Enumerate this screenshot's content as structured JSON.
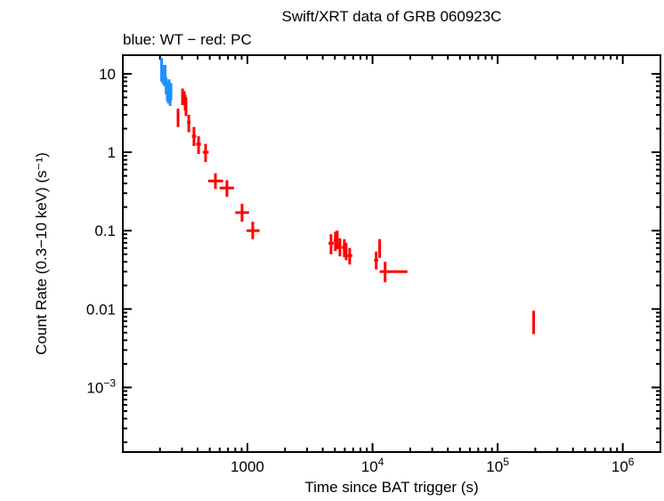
{
  "chart_data": {
    "type": "scatter",
    "title": "Swift/XRT data of GRB 060923C",
    "subtitle": "blue: WT − red: PC",
    "xlabel": "Time since BAT trigger (s)",
    "ylabel": "Count Rate (0.3−10 keV) (s⁻¹)",
    "xscale": "log",
    "yscale": "log",
    "xlim": [
      101,
      2000000
    ],
    "ylim": [
      0.00015,
      17.3
    ],
    "grid": false,
    "x_ticks": [
      {
        "value": 1000,
        "label": "1000"
      },
      {
        "value": 10000,
        "base": "10",
        "exp": "4"
      },
      {
        "value": 100000,
        "base": "10",
        "exp": "5"
      },
      {
        "value": 1000000,
        "base": "10",
        "exp": "6"
      }
    ],
    "y_ticks": [
      {
        "value": 10,
        "label": "10"
      },
      {
        "value": 1,
        "label": "1"
      },
      {
        "value": 0.1,
        "label": "0.1"
      },
      {
        "value": 0.01,
        "label": "0.01"
      },
      {
        "value": 0.001,
        "base": "10",
        "exp": "−3"
      }
    ],
    "series": [
      {
        "name": "WT",
        "color": "#1e90ff",
        "points": [
          {
            "x": 206,
            "y": 12,
            "ylo": 8,
            "yhi": 16,
            "xlo": 204,
            "xhi": 209
          },
          {
            "x": 211,
            "y": 10,
            "ylo": 7.5,
            "yhi": 13,
            "xlo": 209,
            "xhi": 213
          },
          {
            "x": 216,
            "y": 9,
            "ylo": 7,
            "yhi": 12,
            "xlo": 213,
            "xhi": 218
          },
          {
            "x": 220,
            "y": 9.5,
            "ylo": 7,
            "yhi": 13,
            "xlo": 218,
            "xhi": 222
          },
          {
            "x": 224,
            "y": 7,
            "ylo": 5.5,
            "yhi": 9,
            "xlo": 222,
            "xhi": 226
          },
          {
            "x": 229,
            "y": 6,
            "ylo": 4.5,
            "yhi": 8,
            "xlo": 226,
            "xhi": 231
          },
          {
            "x": 233,
            "y": 5.5,
            "ylo": 4.2,
            "yhi": 7.2,
            "xlo": 231,
            "xhi": 235
          },
          {
            "x": 237,
            "y": 6.5,
            "ylo": 5,
            "yhi": 8.5,
            "xlo": 235,
            "xhi": 239
          },
          {
            "x": 241,
            "y": 5,
            "ylo": 3.9,
            "yhi": 6.5,
            "xlo": 239,
            "xhi": 243
          },
          {
            "x": 245,
            "y": 6,
            "ylo": 4.6,
            "yhi": 7.6,
            "xlo": 243,
            "xhi": 247
          }
        ]
      },
      {
        "name": "PC",
        "color": "#ff0000",
        "points": [
          {
            "x": 279,
            "y": 2.8,
            "ylo": 2.1,
            "yhi": 3.6,
            "xlo": 272,
            "xhi": 286
          },
          {
            "x": 303,
            "y": 5.2,
            "ylo": 4.0,
            "yhi": 6.5,
            "xlo": 296,
            "xhi": 311
          },
          {
            "x": 313,
            "y": 4.9,
            "ylo": 4.0,
            "yhi": 6.0,
            "xlo": 306,
            "xhi": 318
          },
          {
            "x": 318,
            "y": 4.3,
            "ylo": 3.4,
            "yhi": 5.4,
            "xlo": 314,
            "xhi": 322
          },
          {
            "x": 323,
            "y": 3.9,
            "ylo": 2.9,
            "yhi": 5.0,
            "xlo": 318,
            "xhi": 330
          },
          {
            "x": 340,
            "y": 2.4,
            "ylo": 1.8,
            "yhi": 3.0,
            "xlo": 330,
            "xhi": 352
          },
          {
            "x": 374,
            "y": 1.6,
            "ylo": 1.2,
            "yhi": 2.1,
            "xlo": 360,
            "xhi": 390
          },
          {
            "x": 407,
            "y": 1.27,
            "ylo": 0.95,
            "yhi": 1.6,
            "xlo": 390,
            "xhi": 425
          },
          {
            "x": 463,
            "y": 1.0,
            "ylo": 0.75,
            "yhi": 1.28,
            "xlo": 440,
            "xhi": 490
          },
          {
            "x": 555,
            "y": 0.43,
            "ylo": 0.34,
            "yhi": 0.54,
            "xlo": 485,
            "xhi": 640
          },
          {
            "x": 686,
            "y": 0.35,
            "ylo": 0.27,
            "yhi": 0.44,
            "xlo": 600,
            "xhi": 780
          },
          {
            "x": 906,
            "y": 0.17,
            "ylo": 0.13,
            "yhi": 0.22,
            "xlo": 800,
            "xhi": 1030
          },
          {
            "x": 1103,
            "y": 0.1,
            "ylo": 0.078,
            "yhi": 0.13,
            "xlo": 985,
            "xhi": 1250
          },
          {
            "x": 4660,
            "y": 0.069,
            "ylo": 0.05,
            "yhi": 0.09,
            "xlo": 4450,
            "xhi": 4900
          },
          {
            "x": 5050,
            "y": 0.075,
            "ylo": 0.055,
            "yhi": 0.097,
            "xlo": 4900,
            "xhi": 5150
          },
          {
            "x": 5220,
            "y": 0.079,
            "ylo": 0.058,
            "yhi": 0.1,
            "xlo": 5150,
            "xhi": 5300
          },
          {
            "x": 5490,
            "y": 0.062,
            "ylo": 0.047,
            "yhi": 0.08,
            "xlo": 5300,
            "xhi": 5650
          },
          {
            "x": 5950,
            "y": 0.061,
            "ylo": 0.046,
            "yhi": 0.078,
            "xlo": 5700,
            "xhi": 6100
          },
          {
            "x": 6150,
            "y": 0.055,
            "ylo": 0.042,
            "yhi": 0.07,
            "xlo": 6050,
            "xhi": 6300
          },
          {
            "x": 6570,
            "y": 0.048,
            "ylo": 0.037,
            "yhi": 0.06,
            "xlo": 6300,
            "xhi": 6900
          },
          {
            "x": 10700,
            "y": 0.042,
            "ylo": 0.032,
            "yhi": 0.054,
            "xlo": 10300,
            "xhi": 11100
          },
          {
            "x": 11400,
            "y": 0.061,
            "ylo": 0.045,
            "yhi": 0.078,
            "xlo": 11100,
            "xhi": 11700
          },
          {
            "x": 12600,
            "y": 0.03,
            "ylo": 0.022,
            "yhi": 0.04,
            "xlo": 11400,
            "xhi": 19000
          },
          {
            "x": 194000,
            "y": 0.0068,
            "ylo": 0.0048,
            "yhi": 0.0095,
            "xlo": 193000,
            "xhi": 195000
          }
        ]
      }
    ]
  }
}
